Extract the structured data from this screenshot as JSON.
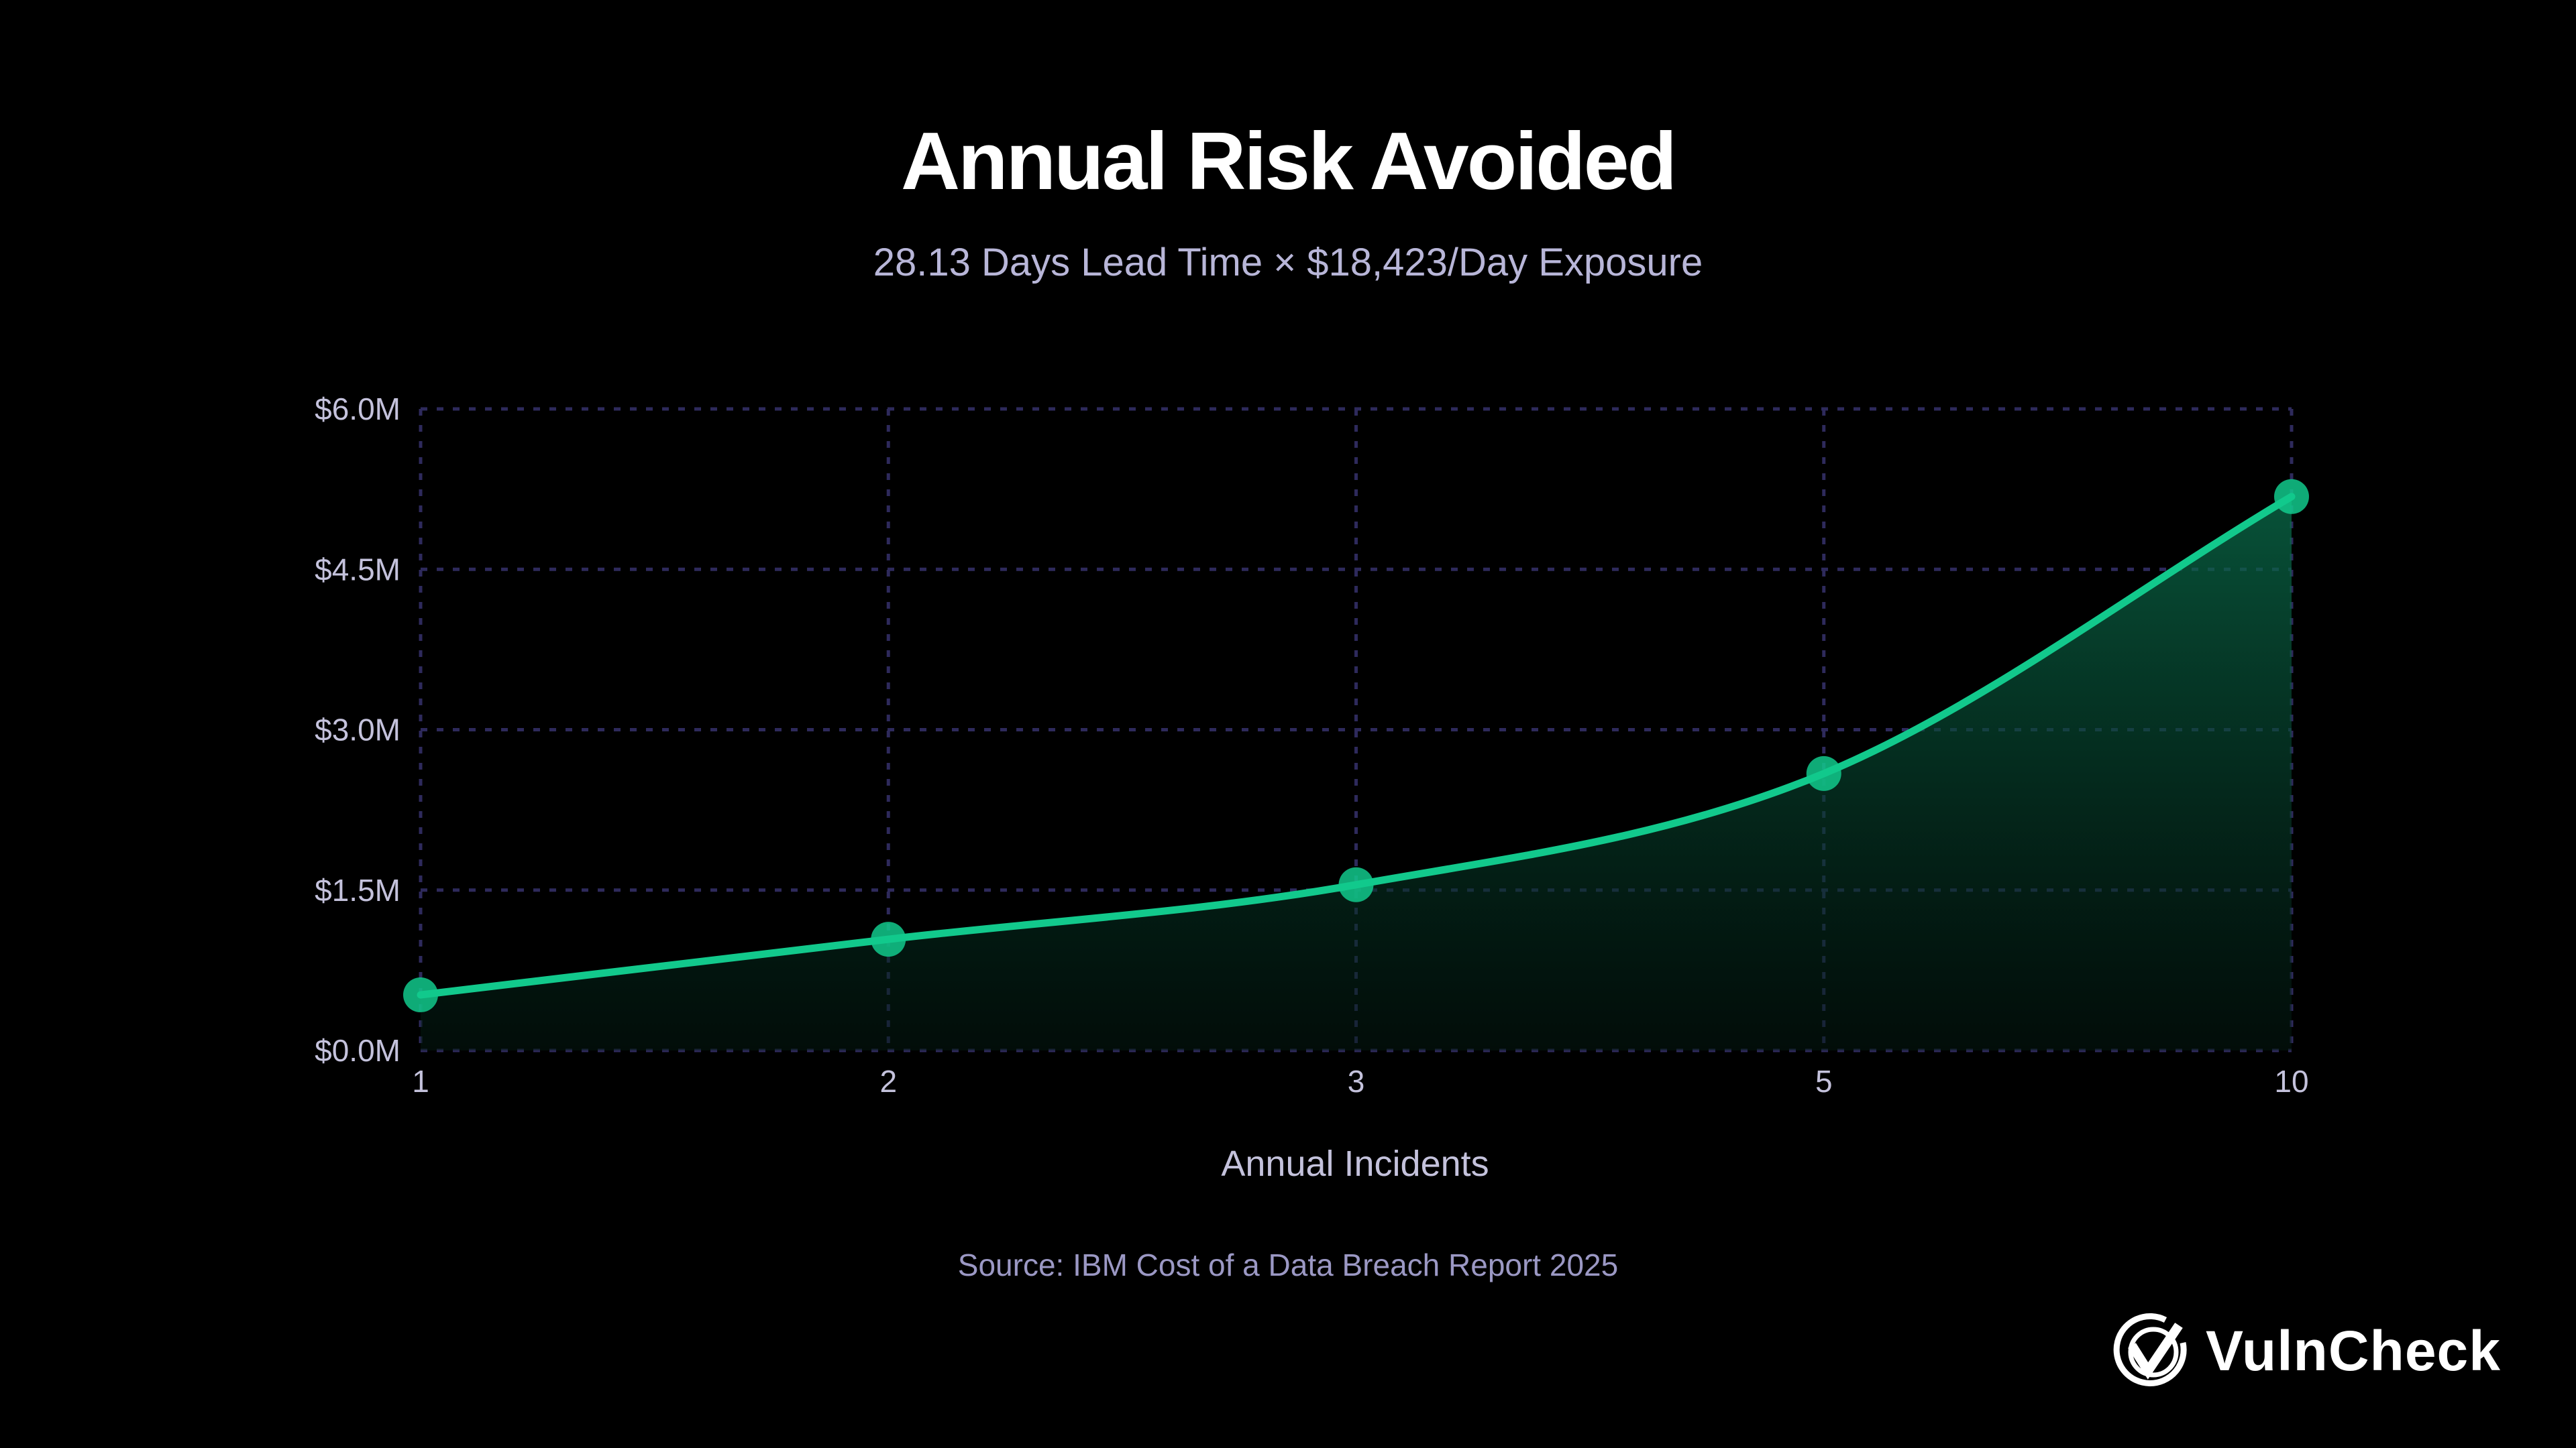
{
  "chart_data": {
    "type": "area",
    "title": "Annual Risk Avoided",
    "subtitle": "28.13 Days Lead Time × $18,423/Day Exposure",
    "xlabel": "Annual Incidents",
    "ylabel": "",
    "categories": [
      "1",
      "2",
      "3",
      "5",
      "10"
    ],
    "values": [
      0.52,
      1.04,
      1.55,
      2.59,
      5.18
    ],
    "value_unit": "$M",
    "ylim": [
      0,
      6.0
    ],
    "yticks": [
      0,
      1.5,
      3.0,
      4.5,
      6.0
    ],
    "ytick_labels": [
      "$0.0M",
      "$1.5M",
      "$3.0M",
      "$4.5M",
      "$6.0M"
    ],
    "grid": true,
    "legend": "none",
    "colors": {
      "line": "#12c98c",
      "grid": "#2e2a5c",
      "background": "#000000"
    }
  },
  "source": "Source: IBM Cost of a Data Breach Report 2025",
  "logo": {
    "text": "VulnCheck",
    "icon": "check-shield-icon"
  }
}
